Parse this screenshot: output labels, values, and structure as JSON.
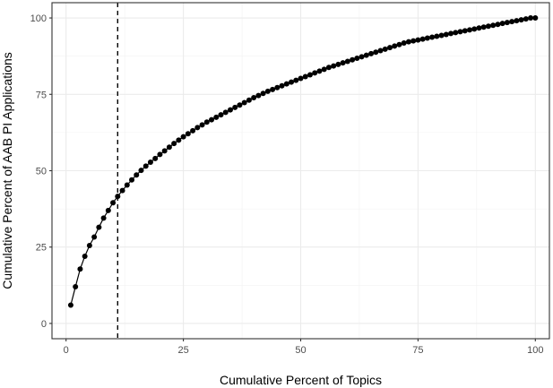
{
  "chart_data": {
    "type": "line",
    "xlabel": "Cumulative Percent of Topics",
    "ylabel": "Cumulative Percent of AAB PI Applications",
    "xlim": [
      -3,
      103
    ],
    "ylim": [
      -5,
      105
    ],
    "x_ticks": [
      0,
      25,
      50,
      75,
      100
    ],
    "y_ticks": [
      0,
      25,
      50,
      75,
      100
    ],
    "x_tick_labels": [
      "0",
      "25",
      "50",
      "75",
      "100"
    ],
    "y_tick_labels": [
      "0",
      "25",
      "50",
      "75",
      "100"
    ],
    "grid": true,
    "reference_line": {
      "x": 11,
      "style": "dashed"
    },
    "series": [
      {
        "x": [
          1,
          2,
          3,
          4,
          5,
          6,
          7,
          8,
          9,
          10,
          11,
          12,
          13,
          14,
          15,
          16,
          17,
          18,
          19,
          20,
          21,
          22,
          23,
          24,
          25,
          26,
          27,
          28,
          29,
          30,
          31,
          32,
          33,
          34,
          35,
          36,
          37,
          38,
          39,
          40,
          41,
          42,
          43,
          44,
          45,
          46,
          47,
          48,
          49,
          50,
          51,
          52,
          53,
          54,
          55,
          56,
          57,
          58,
          59,
          60,
          61,
          62,
          63,
          64,
          65,
          66,
          67,
          68,
          69,
          70,
          71,
          72,
          73,
          74,
          75,
          76,
          77,
          78,
          79,
          80,
          81,
          82,
          83,
          84,
          85,
          86,
          87,
          88,
          89,
          90,
          91,
          92,
          93,
          94,
          95,
          96,
          97,
          98,
          99,
          100
        ],
        "y": [
          6,
          12,
          17.8,
          22,
          25.5,
          28.3,
          31.5,
          34.5,
          37,
          39.5,
          41.6,
          43.5,
          45.3,
          47,
          48.6,
          50.1,
          51.5,
          52.8,
          54,
          55.3,
          56.5,
          57.7,
          58.9,
          60,
          61.1,
          62.1,
          63.1,
          64.1,
          65,
          65.9,
          66.7,
          67.5,
          68.3,
          69.1,
          69.9,
          70.7,
          71.5,
          72.3,
          73.1,
          73.9,
          74.6,
          75.3,
          76,
          76.6,
          77.2,
          77.8,
          78.4,
          79,
          79.6,
          80.2,
          80.8,
          81.4,
          82,
          82.6,
          83.2,
          83.8,
          84.3,
          84.8,
          85.3,
          85.8,
          86.3,
          86.8,
          87.3,
          87.8,
          88.3,
          88.8,
          89.3,
          89.8,
          90.3,
          90.8,
          91.3,
          91.8,
          92.2,
          92.5,
          92.8,
          93.1,
          93.4,
          93.7,
          94,
          94.3,
          94.6,
          94.9,
          95.2,
          95.5,
          95.8,
          96.1,
          96.4,
          96.7,
          97,
          97.3,
          97.6,
          97.9,
          98.2,
          98.5,
          98.8,
          99.1,
          99.4,
          99.7,
          100,
          100
        ]
      }
    ]
  }
}
